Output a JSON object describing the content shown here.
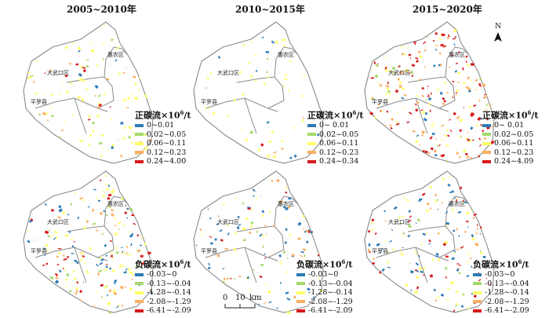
{
  "columns": [
    "2005~2010年",
    "2010~2015年",
    "2015~2020年"
  ],
  "district_labels": {
    "huairou": "惠农区",
    "dawukou": "大武口区",
    "pingluo": "平罗县"
  },
  "north_arrow": {
    "letter": "N"
  },
  "scale_bar": {
    "ticks": [
      "0",
      "10"
    ],
    "unit": "km"
  },
  "legend_positive": {
    "title_prefix": "正碳流×10",
    "title_sup": "6",
    "title_suffix": "/t",
    "colors": [
      "#2c7bb6",
      "#a6d96a",
      "#ffff66",
      "#fdae61",
      "#d7191c"
    ],
    "periods": [
      [
        "0~0.01",
        "0.02~0.05",
        "0.06~0.11",
        "0.12~0.23",
        "0.24~4.00"
      ],
      [
        "0~ 0.01",
        "0.02~0.05",
        "0.06~0.11",
        "0.12~0.23",
        "0.24~0.34"
      ],
      [
        "0~ 0.01",
        "0.02~0.05",
        "0.06~0.11",
        "0.12~0.23",
        "0.24~4.09"
      ]
    ]
  },
  "legend_negative": {
    "title_prefix": "负碳流×10",
    "title_sup": "6",
    "title_suffix": "/t",
    "colors": [
      "#2c7bb6",
      "#a6d96a",
      "#ffff66",
      "#fdae61",
      "#d7191c"
    ],
    "periods": [
      [
        "-0.03~0",
        "-0.13~-0.04",
        "-1.28~-0.14",
        "-2.08~-1.29",
        "-6.41~-2.09"
      ],
      [
        "-0.03~0",
        "-0.13~-0.04",
        "-1.28~-0.14",
        "-2.08~-1.29",
        "-6.41~-2.09"
      ],
      [
        "-0.03~0",
        "-0.13~-0.04",
        "-1.28~-0.14",
        "-2.08~-1.29",
        "-6.41~-2.09"
      ]
    ]
  }
}
